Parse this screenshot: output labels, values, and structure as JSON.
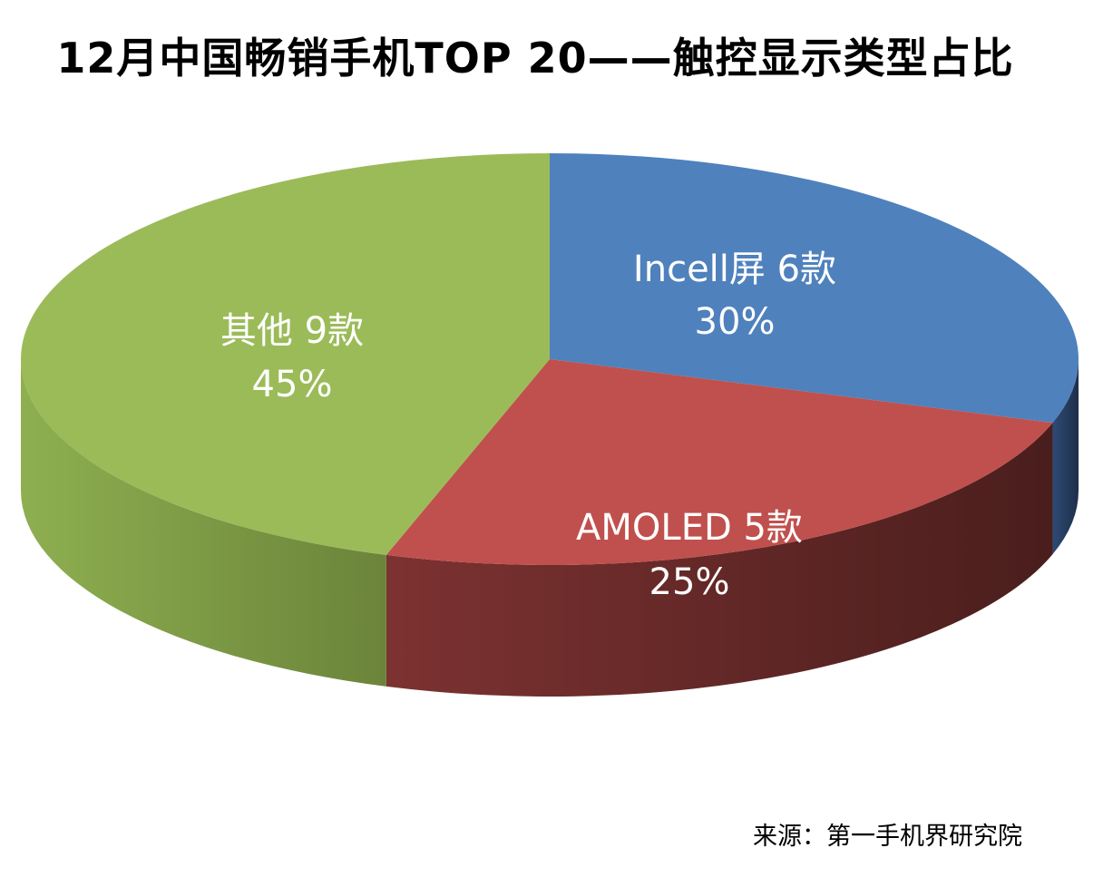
{
  "chart_data": {
    "type": "pie",
    "title": "12月中国畅销手机TOP 20——触控显示类型占比",
    "slices": [
      {
        "name": "Incell屏 6款",
        "value": 30,
        "percent_label": "30%",
        "color": "#4F81BD",
        "side_color": "#24395A"
      },
      {
        "name": "AMOLED 5款",
        "value": 25,
        "percent_label": "25%",
        "color": "#C0504D",
        "side_color": "#5E2221"
      },
      {
        "name": "其他 9款",
        "value": 45,
        "percent_label": "45%",
        "color": "#9BBB59",
        "side_color": "#70893D"
      }
    ],
    "legend": "none",
    "style": "3d-tilted"
  },
  "source_note": "来源：第一手机界研究院"
}
